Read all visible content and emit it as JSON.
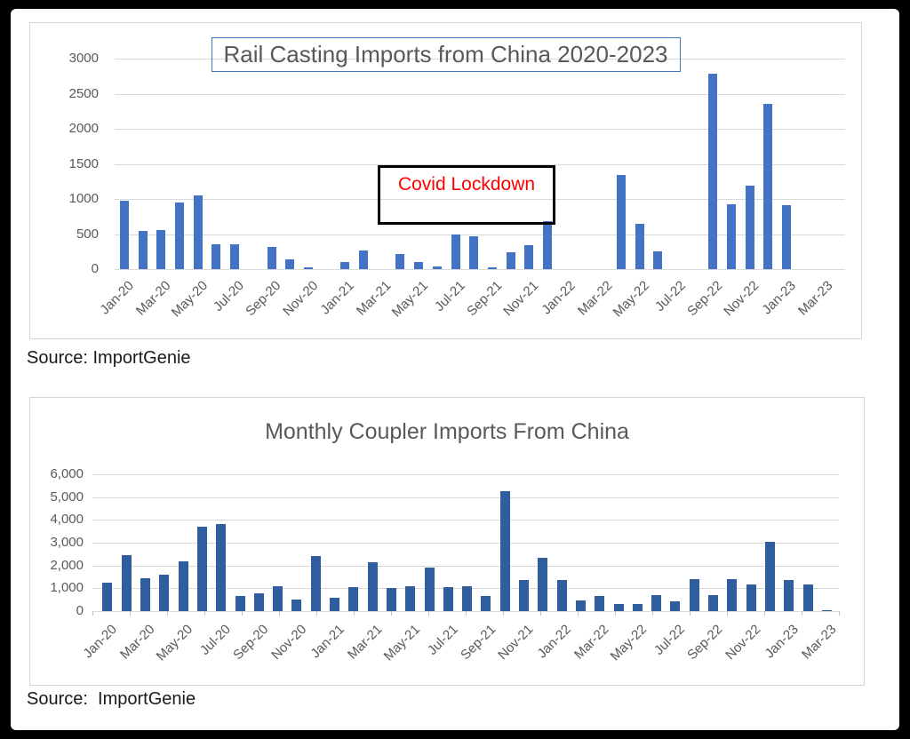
{
  "frame_color": "#000000",
  "chart_data": [
    {
      "type": "bar",
      "title": "Rail Casting Imports from China 2020-2023",
      "source": "Source: ImportGenie",
      "annotation": {
        "text": "Covid Lockdown",
        "color": "#FF0000"
      },
      "bar_color": "#4472C4",
      "grid": true,
      "legend": "none",
      "xlabel": "",
      "ylabel": "",
      "ylim": [
        0,
        3000
      ],
      "y_step": 500,
      "y_tick_labels": [
        "0",
        "500",
        "1000",
        "1500",
        "2000",
        "2500",
        "3000"
      ],
      "x_tick_labels": [
        "Jan-20",
        "Mar-20",
        "May-20",
        "Jul-20",
        "Sep-20",
        "Nov-20",
        "Jan-21",
        "Mar-21",
        "May-21",
        "Jul-21",
        "Sep-21",
        "Nov-21",
        "Jan-22",
        "Mar-22",
        "May-22",
        "Jul-22",
        "Sep-22",
        "Nov-22",
        "Jan-23",
        "Mar-23"
      ],
      "categories": [
        "Jan-20",
        "Feb-20",
        "Mar-20",
        "Apr-20",
        "May-20",
        "Jun-20",
        "Jul-20",
        "Aug-20",
        "Sep-20",
        "Oct-20",
        "Nov-20",
        "Dec-20",
        "Jan-21",
        "Feb-21",
        "Mar-21",
        "Apr-21",
        "May-21",
        "Jun-21",
        "Jul-21",
        "Aug-21",
        "Sep-21",
        "Oct-21",
        "Nov-21",
        "Dec-21",
        "Jan-22",
        "Feb-22",
        "Mar-22",
        "Apr-22",
        "May-22",
        "Jun-22",
        "Jul-22",
        "Aug-22",
        "Sep-22",
        "Oct-22",
        "Nov-22",
        "Dec-22",
        "Jan-23",
        "Feb-23",
        "Mar-23"
      ],
      "values": [
        970,
        540,
        555,
        955,
        1050,
        360,
        355,
        0,
        315,
        135,
        25,
        0,
        100,
        260,
        0,
        210,
        105,
        35,
        500,
        465,
        20,
        240,
        340,
        680,
        0,
        0,
        0,
        1340,
        640,
        250,
        0,
        0,
        2780,
        930,
        1190,
        2350,
        910,
        0,
        0
      ]
    },
    {
      "type": "bar",
      "title": "Monthly Coupler Imports From China",
      "source": "Source:  ImportGenie",
      "bar_color": "#2F5D9E",
      "grid": true,
      "legend": "none",
      "xlabel": "",
      "ylabel": "",
      "ylim": [
        0,
        6000
      ],
      "y_step": 1000,
      "y_tick_labels": [
        "0",
        "1,000",
        "2,000",
        "3,000",
        "4,000",
        "5,000",
        "6,000"
      ],
      "x_tick_labels": [
        "Jan-20",
        "Mar-20",
        "May-20",
        "Jul-20",
        "Sep-20",
        "Nov-20",
        "Jan-21",
        "Mar-21",
        "May-21",
        "Jul-21",
        "Sep-21",
        "Nov-21",
        "Jan-22",
        "Mar-22",
        "May-22",
        "Jul-22",
        "Sep-22",
        "Nov-22",
        "Jan-23",
        "Mar-23"
      ],
      "categories": [
        "Jan-20",
        "Feb-20",
        "Mar-20",
        "Apr-20",
        "May-20",
        "Jun-20",
        "Jul-20",
        "Aug-20",
        "Sep-20",
        "Oct-20",
        "Nov-20",
        "Dec-20",
        "Jan-21",
        "Feb-21",
        "Mar-21",
        "Apr-21",
        "May-21",
        "Jun-21",
        "Jul-21",
        "Aug-21",
        "Sep-21",
        "Oct-21",
        "Nov-21",
        "Dec-21",
        "Jan-22",
        "Feb-22",
        "Mar-22",
        "Apr-22",
        "May-22",
        "Jun-22",
        "Jul-22",
        "Aug-22",
        "Sep-22",
        "Oct-22",
        "Nov-22",
        "Dec-22",
        "Jan-23",
        "Feb-23",
        "Mar-23"
      ],
      "values": [
        1250,
        2450,
        1450,
        1600,
        2200,
        3700,
        3800,
        650,
        780,
        1100,
        500,
        2400,
        600,
        1050,
        2150,
        1020,
        1100,
        1900,
        1060,
        1100,
        650,
        5250,
        1350,
        2350,
        1350,
        480,
        650,
        300,
        310,
        690,
        440,
        1400,
        700,
        1400,
        1150,
        3050,
        1380,
        1150,
        50
      ]
    }
  ]
}
